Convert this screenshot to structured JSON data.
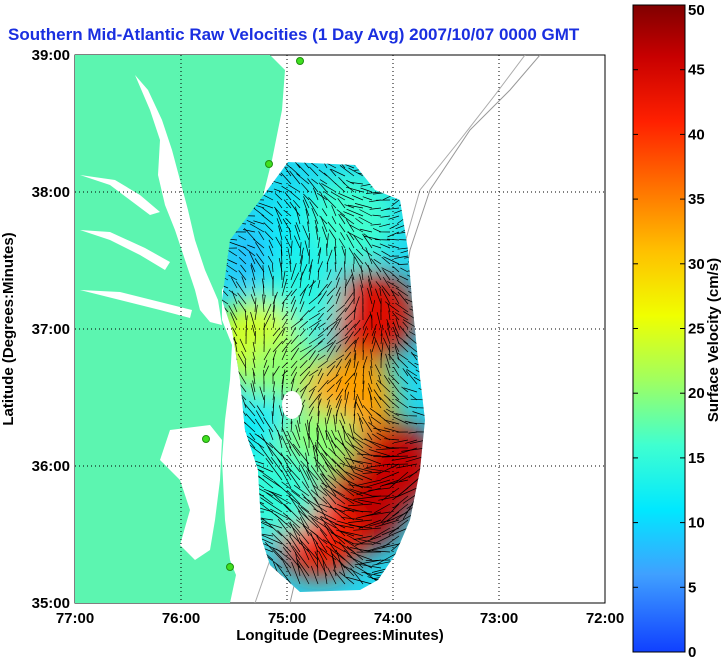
{
  "chart_data": {
    "type": "heatmap",
    "title": "Southern Mid-Atlantic Raw Velocities (1 Day Avg) 2007/10/07 0000 GMT",
    "xlabel": "Longitude (Degrees:Minutes)",
    "ylabel": "Latitude (Degrees:Minutes)",
    "xlim": [
      -77,
      -72
    ],
    "ylim": [
      35,
      39
    ],
    "x_ticks": [
      "77:00",
      "76:00",
      "75:00",
      "74:00",
      "73:00",
      "72:00"
    ],
    "y_ticks": [
      "39:00",
      "38:00",
      "37:00",
      "36:00",
      "35:00"
    ],
    "grid": true,
    "colorbar": {
      "label": "Surface Velocity (cm/s)",
      "min": 0,
      "max": 50,
      "ticks": [
        "50",
        "45",
        "40",
        "35",
        "30",
        "25",
        "20",
        "15",
        "10",
        "5",
        "0"
      ]
    },
    "regions": [
      {
        "lon": -75.1,
        "lat": 37.5,
        "speed": 8
      },
      {
        "lon": -74.8,
        "lat": 37.7,
        "speed": 12
      },
      {
        "lon": -74.4,
        "lat": 37.8,
        "speed": 16
      },
      {
        "lon": -74.2,
        "lat": 37.1,
        "speed": 44
      },
      {
        "lon": -74.9,
        "lat": 37.2,
        "speed": 14
      },
      {
        "lon": -75.3,
        "lat": 36.9,
        "speed": 24
      },
      {
        "lon": -75.0,
        "lat": 36.6,
        "speed": 20
      },
      {
        "lon": -74.4,
        "lat": 36.5,
        "speed": 33
      },
      {
        "lon": -75.2,
        "lat": 36.2,
        "speed": 12
      },
      {
        "lon": -74.7,
        "lat": 36.1,
        "speed": 20
      },
      {
        "lon": -74.3,
        "lat": 35.7,
        "speed": 47
      },
      {
        "lon": -74.7,
        "lat": 35.5,
        "speed": 42
      },
      {
        "lon": -75.1,
        "lat": 35.8,
        "speed": 15
      },
      {
        "lon": -74.0,
        "lat": 36.0,
        "speed": 46
      }
    ]
  }
}
